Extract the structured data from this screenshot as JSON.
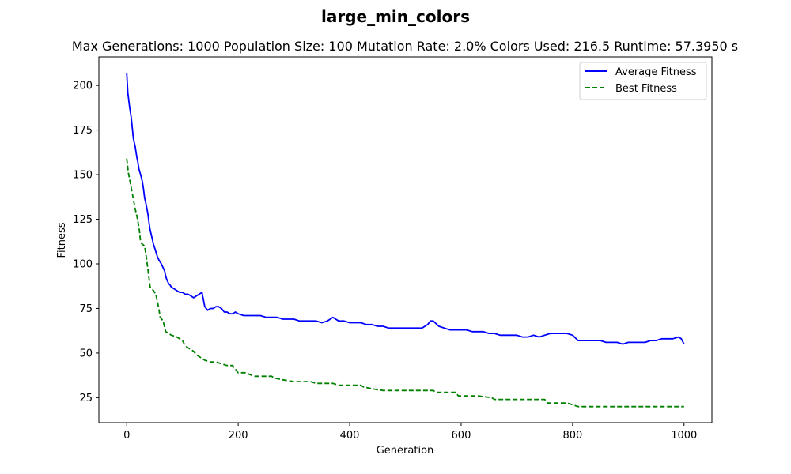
{
  "chart_data": {
    "type": "line",
    "title": "large_min_colors",
    "subtitle": "Max Generations: 1000  Population Size: 100  Mutation Rate: 2.0%  Colors Used: 216.5  Runtime: 57.3950 s",
    "xlabel": "Generation",
    "ylabel": "Fitness",
    "xlim": [
      -50,
      1050
    ],
    "ylim": [
      11,
      216
    ],
    "xticks": [
      0,
      200,
      400,
      600,
      800,
      1000
    ],
    "yticks": [
      25,
      50,
      75,
      100,
      125,
      150,
      175,
      200
    ],
    "grid": false,
    "legend_position": "top-right",
    "series": [
      {
        "name": "Average Fitness",
        "color": "#0000ff",
        "style": "solid",
        "points": [
          [
            0,
            207
          ],
          [
            2,
            196
          ],
          [
            5,
            188
          ],
          [
            8,
            182
          ],
          [
            10,
            176
          ],
          [
            12,
            170
          ],
          [
            15,
            166
          ],
          [
            18,
            160
          ],
          [
            20,
            157
          ],
          [
            22,
            153
          ],
          [
            25,
            150
          ],
          [
            28,
            146
          ],
          [
            30,
            142
          ],
          [
            32,
            137
          ],
          [
            35,
            133
          ],
          [
            38,
            128
          ],
          [
            40,
            123
          ],
          [
            42,
            119
          ],
          [
            45,
            115
          ],
          [
            48,
            111
          ],
          [
            50,
            109
          ],
          [
            52,
            107
          ],
          [
            55,
            104
          ],
          [
            58,
            102
          ],
          [
            60,
            101
          ],
          [
            62,
            100
          ],
          [
            65,
            98
          ],
          [
            68,
            96
          ],
          [
            70,
            93
          ],
          [
            72,
            91
          ],
          [
            75,
            89
          ],
          [
            78,
            88
          ],
          [
            80,
            87
          ],
          [
            85,
            86
          ],
          [
            90,
            85
          ],
          [
            95,
            84
          ],
          [
            100,
            84
          ],
          [
            105,
            83
          ],
          [
            110,
            83
          ],
          [
            115,
            82
          ],
          [
            120,
            81
          ],
          [
            125,
            82
          ],
          [
            130,
            83
          ],
          [
            135,
            84
          ],
          [
            140,
            76
          ],
          [
            145,
            74
          ],
          [
            150,
            75
          ],
          [
            155,
            75
          ],
          [
            160,
            76
          ],
          [
            165,
            76
          ],
          [
            170,
            75
          ],
          [
            175,
            73
          ],
          [
            180,
            73
          ],
          [
            185,
            72
          ],
          [
            190,
            72
          ],
          [
            195,
            73
          ],
          [
            200,
            72
          ],
          [
            210,
            71
          ],
          [
            220,
            71
          ],
          [
            230,
            71
          ],
          [
            240,
            71
          ],
          [
            250,
            70
          ],
          [
            260,
            70
          ],
          [
            270,
            70
          ],
          [
            280,
            69
          ],
          [
            290,
            69
          ],
          [
            300,
            69
          ],
          [
            310,
            68
          ],
          [
            320,
            68
          ],
          [
            330,
            68
          ],
          [
            340,
            68
          ],
          [
            350,
            67
          ],
          [
            360,
            68
          ],
          [
            370,
            70
          ],
          [
            380,
            68
          ],
          [
            390,
            68
          ],
          [
            400,
            67
          ],
          [
            410,
            67
          ],
          [
            420,
            67
          ],
          [
            430,
            66
          ],
          [
            440,
            66
          ],
          [
            450,
            65
          ],
          [
            460,
            65
          ],
          [
            470,
            64
          ],
          [
            480,
            64
          ],
          [
            490,
            64
          ],
          [
            500,
            64
          ],
          [
            510,
            64
          ],
          [
            520,
            64
          ],
          [
            530,
            64
          ],
          [
            540,
            66
          ],
          [
            545,
            68
          ],
          [
            550,
            68
          ],
          [
            560,
            65
          ],
          [
            570,
            64
          ],
          [
            580,
            63
          ],
          [
            590,
            63
          ],
          [
            600,
            63
          ],
          [
            610,
            63
          ],
          [
            620,
            62
          ],
          [
            630,
            62
          ],
          [
            640,
            62
          ],
          [
            650,
            61
          ],
          [
            660,
            61
          ],
          [
            670,
            60
          ],
          [
            680,
            60
          ],
          [
            690,
            60
          ],
          [
            700,
            60
          ],
          [
            710,
            59
          ],
          [
            720,
            59
          ],
          [
            730,
            60
          ],
          [
            740,
            59
          ],
          [
            750,
            60
          ],
          [
            760,
            61
          ],
          [
            770,
            61
          ],
          [
            780,
            61
          ],
          [
            790,
            61
          ],
          [
            800,
            60
          ],
          [
            810,
            57
          ],
          [
            820,
            57
          ],
          [
            830,
            57
          ],
          [
            840,
            57
          ],
          [
            850,
            57
          ],
          [
            860,
            56
          ],
          [
            870,
            56
          ],
          [
            880,
            56
          ],
          [
            890,
            55
          ],
          [
            900,
            56
          ],
          [
            910,
            56
          ],
          [
            920,
            56
          ],
          [
            930,
            56
          ],
          [
            940,
            57
          ],
          [
            950,
            57
          ],
          [
            960,
            58
          ],
          [
            970,
            58
          ],
          [
            980,
            58
          ],
          [
            990,
            59
          ],
          [
            995,
            58
          ],
          [
            1000,
            55
          ]
        ]
      },
      {
        "name": "Best Fitness",
        "color": "#008000",
        "style": "dashed",
        "points": [
          [
            0,
            159
          ],
          [
            3,
            151
          ],
          [
            6,
            146
          ],
          [
            9,
            141
          ],
          [
            12,
            136
          ],
          [
            15,
            131
          ],
          [
            18,
            127
          ],
          [
            20,
            124
          ],
          [
            23,
            118
          ],
          [
            25,
            112
          ],
          [
            28,
            111
          ],
          [
            32,
            110
          ],
          [
            35,
            104
          ],
          [
            38,
            97
          ],
          [
            40,
            92
          ],
          [
            42,
            87
          ],
          [
            45,
            86
          ],
          [
            48,
            85
          ],
          [
            52,
            83
          ],
          [
            55,
            79
          ],
          [
            58,
            74
          ],
          [
            60,
            70
          ],
          [
            63,
            69
          ],
          [
            66,
            67
          ],
          [
            70,
            62
          ],
          [
            75,
            61
          ],
          [
            80,
            60
          ],
          [
            90,
            59
          ],
          [
            100,
            57
          ],
          [
            105,
            54
          ],
          [
            110,
            53
          ],
          [
            120,
            51
          ],
          [
            125,
            49
          ],
          [
            130,
            48
          ],
          [
            140,
            46
          ],
          [
            150,
            45
          ],
          [
            160,
            45
          ],
          [
            170,
            44
          ],
          [
            180,
            43
          ],
          [
            190,
            43
          ],
          [
            200,
            39
          ],
          [
            215,
            39
          ],
          [
            220,
            38
          ],
          [
            230,
            37
          ],
          [
            260,
            37
          ],
          [
            265,
            36
          ],
          [
            280,
            35
          ],
          [
            300,
            34
          ],
          [
            330,
            34
          ],
          [
            340,
            33
          ],
          [
            350,
            33
          ],
          [
            360,
            33
          ],
          [
            370,
            33
          ],
          [
            380,
            32
          ],
          [
            420,
            32
          ],
          [
            425,
            31
          ],
          [
            440,
            30
          ],
          [
            460,
            29
          ],
          [
            500,
            29
          ],
          [
            510,
            29
          ],
          [
            550,
            29
          ],
          [
            555,
            28
          ],
          [
            590,
            28
          ],
          [
            595,
            26
          ],
          [
            630,
            26
          ],
          [
            655,
            25
          ],
          [
            660,
            24
          ],
          [
            700,
            24
          ],
          [
            710,
            24
          ],
          [
            720,
            24
          ],
          [
            750,
            24
          ],
          [
            755,
            22
          ],
          [
            790,
            22
          ],
          [
            800,
            21
          ],
          [
            810,
            20
          ],
          [
            830,
            20
          ],
          [
            900,
            20
          ],
          [
            1000,
            20
          ]
        ]
      }
    ]
  }
}
